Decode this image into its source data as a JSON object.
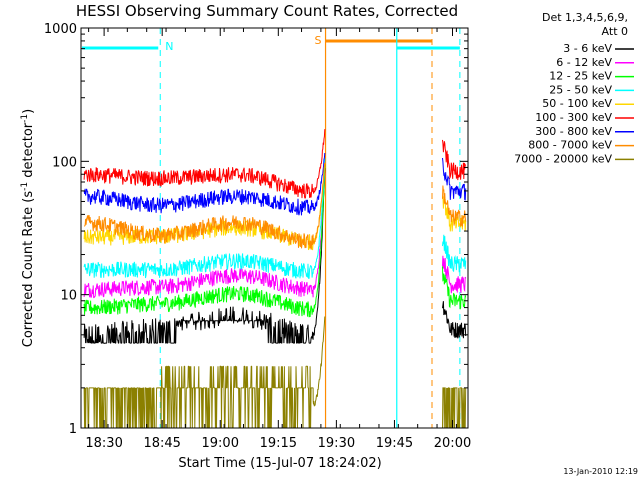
{
  "chart_data": {
    "type": "line",
    "title": "HESSI Observing Summary Count Rates, Corrected",
    "xlabel": "Start Time (15-Jul-07 18:24:02)",
    "ylabel": "Corrected Count Rate (s",
    "ylabel_sup1": "-1",
    "ylabel_mid": " detector",
    "ylabel_sup2": "-1",
    "ylabel_end": ")",
    "x_tick_labels": [
      "18:30",
      "18:45",
      "19:00",
      "19:15",
      "19:30",
      "19:45",
      "20:00"
    ],
    "x_tick_minutes": [
      1110,
      1125,
      1140,
      1155,
      1170,
      1185,
      1200
    ],
    "xlim_minutes": [
      1104.03,
      1204.0
    ],
    "y_scale": "log",
    "ylim": [
      1,
      1000
    ],
    "y_tick_labels": [
      "1",
      "10",
      "100",
      "1000"
    ],
    "y_tick_values": [
      1,
      10,
      100,
      1000
    ],
    "legend_header": [
      "Det 1,3,4,5,6,9,",
      "Att 0"
    ],
    "legend_position": "right",
    "flags": [
      {
        "letter": "N",
        "color": "#00ffff",
        "x_minutes": 1124.5
      },
      {
        "letter": "S",
        "color": "#ff8c00",
        "x_minutes": 1167.2
      }
    ],
    "timestamp": "13-Jan-2010 12:19",
    "series": [
      {
        "name": "3 - 6 keV",
        "color": "#000000",
        "shape": [
          5.1,
          5.7,
          7.0,
          5.1
        ],
        "end_value": 5.5
      },
      {
        "name": "6 - 12 keV",
        "color": "#ff00ff",
        "shape": [
          11.0,
          11.5,
          14.0,
          11.0
        ],
        "end_value": 12.0
      },
      {
        "name": "12 - 25 keV",
        "color": "#00ff00",
        "shape": [
          8.0,
          8.6,
          10.2,
          7.8
        ],
        "end_value": 9.0
      },
      {
        "name": "25 - 50 keV",
        "color": "#00ffff",
        "shape": [
          15.5,
          15.5,
          18.0,
          15.0
        ],
        "end_value": 17.0
      },
      {
        "name": "50 - 100 keV",
        "color": "#ffd700",
        "shape": [
          27.0,
          27.5,
          32.0,
          25.0
        ],
        "end_value": 34.0
      },
      {
        "name": "100 - 300 keV",
        "color": "#ff0000",
        "shape": [
          80.0,
          75.0,
          80.0,
          60.0
        ],
        "end_value": 85.0
      },
      {
        "name": "300 - 800 keV",
        "color": "#0000ff",
        "shape": [
          55.0,
          47.0,
          55.0,
          45.0
        ],
        "end_value": 60.0
      },
      {
        "name": "800 - 7000 keV",
        "color": "#ff8c00",
        "shape": [
          35.0,
          28.0,
          35.0,
          25.0
        ],
        "end_value": 38.0
      },
      {
        "name": "7000 - 20000 keV",
        "color": "#8b8000",
        "shape": [
          1.4,
          1.6,
          2.5,
          1.5
        ],
        "end_value": 1.5
      }
    ]
  }
}
